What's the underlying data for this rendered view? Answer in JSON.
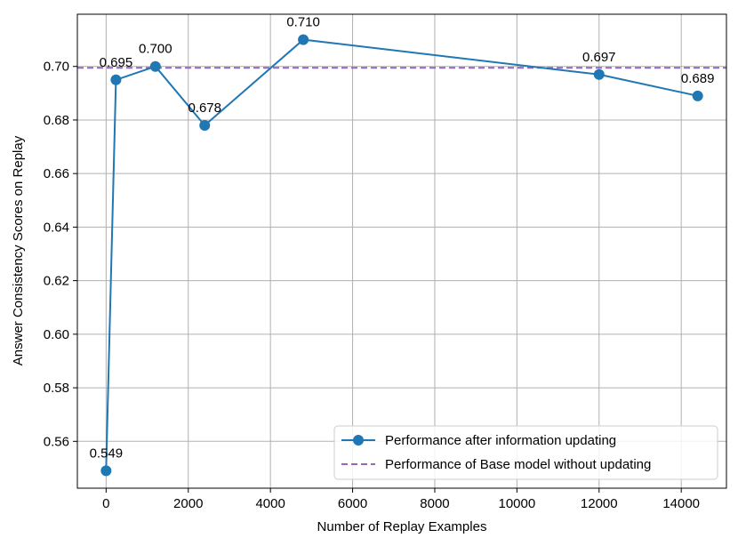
{
  "chart_data": {
    "type": "line",
    "xlabel": "Number of Replay Examples",
    "ylabel": "Answer Consistency Scores on Replay",
    "xlim": [
      -700,
      15100
    ],
    "ylim": [
      0.5425,
      0.7195
    ],
    "xticks": [
      0,
      2000,
      4000,
      6000,
      8000,
      10000,
      12000,
      14000
    ],
    "xtick_labels": [
      "0",
      "2000",
      "4000",
      "6000",
      "8000",
      "10000",
      "12000",
      "14000"
    ],
    "yticks": [
      0.56,
      0.58,
      0.6,
      0.62,
      0.64,
      0.66,
      0.68,
      0.7
    ],
    "ytick_labels": [
      "0.56",
      "0.58",
      "0.60",
      "0.62",
      "0.64",
      "0.66",
      "0.68",
      "0.70"
    ],
    "grid": true,
    "legend_position": "bottom-right",
    "series": [
      {
        "name": "Performance after information updating",
        "color": "#1f77b4",
        "style": "solid-with-markers",
        "x": [
          0,
          240,
          1200,
          2400,
          4800,
          12000,
          14400
        ],
        "y": [
          0.549,
          0.695,
          0.7,
          0.678,
          0.71,
          0.697,
          0.689
        ],
        "labels": [
          "0.549",
          "0.695",
          "0.700",
          "0.678",
          "0.710",
          "0.697",
          "0.689"
        ]
      },
      {
        "name": "Performance of Base model without updating",
        "color": "#9467bd",
        "style": "dashed",
        "y_const": 0.6995
      }
    ]
  }
}
